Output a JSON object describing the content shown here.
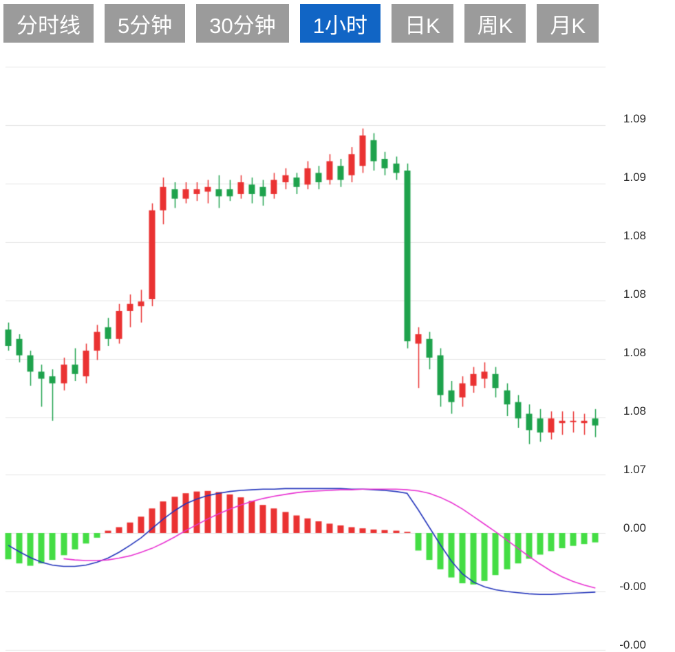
{
  "tabs": {
    "items": [
      {
        "label": "分时线",
        "active": false
      },
      {
        "label": "5分钟",
        "active": false
      },
      {
        "label": "30分钟",
        "active": false
      },
      {
        "label": "1小时",
        "active": true
      },
      {
        "label": "日K",
        "active": false
      },
      {
        "label": "周K",
        "active": false
      },
      {
        "label": "月K",
        "active": false
      }
    ]
  },
  "chart_data": {
    "type": "candlestick",
    "title": "",
    "panels": [
      "price",
      "macd"
    ],
    "legend": "none",
    "grid": "horizontal",
    "price_axis_labels": [
      "1.09",
      "1.09",
      "1.08",
      "1.08",
      "1.08",
      "1.08",
      "1.07"
    ],
    "macd_axis_labels": [
      "0.00",
      "-0.00",
      "-0.00"
    ],
    "ylim": [
      1.0755,
      1.093
    ],
    "macd_ylim": [
      -0.002,
      0.001
    ],
    "candles_ohlc": [
      [
        1.0817,
        1.082,
        1.0808,
        1.081
      ],
      [
        1.0813,
        1.0815,
        1.0803,
        1.0806
      ],
      [
        1.0806,
        1.0808,
        1.0793,
        1.0799
      ],
      [
        1.0799,
        1.0802,
        1.0784,
        1.0796
      ],
      [
        1.0797,
        1.08,
        1.0778,
        1.0794
      ],
      [
        1.0794,
        1.0805,
        1.0791,
        1.0802
      ],
      [
        1.0802,
        1.0809,
        1.0795,
        1.0798
      ],
      [
        1.0797,
        1.0811,
        1.0794,
        1.0808
      ],
      [
        1.0808,
        1.0819,
        1.0804,
        1.0816
      ],
      [
        1.0818,
        1.0822,
        1.081,
        1.0813
      ],
      [
        1.0813,
        1.0828,
        1.0811,
        1.0825
      ],
      [
        1.0825,
        1.0832,
        1.0818,
        1.0828
      ],
      [
        1.0827,
        1.0834,
        1.082,
        1.0829
      ],
      [
        1.083,
        1.0871,
        1.0827,
        1.0868
      ],
      [
        1.0868,
        1.0882,
        1.0862,
        1.0878
      ],
      [
        1.0877,
        1.088,
        1.0869,
        1.0873
      ],
      [
        1.0873,
        1.088,
        1.0871,
        1.0877
      ],
      [
        1.0875,
        1.088,
        1.0872,
        1.0877
      ],
      [
        1.0876,
        1.0881,
        1.0871,
        1.0878
      ],
      [
        1.0877,
        1.0883,
        1.0869,
        1.0874
      ],
      [
        1.0877,
        1.0881,
        1.0872,
        1.0874
      ],
      [
        1.0875,
        1.0883,
        1.0873,
        1.088
      ],
      [
        1.0879,
        1.0882,
        1.0871,
        1.0875
      ],
      [
        1.0878,
        1.0881,
        1.087,
        1.0874
      ],
      [
        1.0875,
        1.0884,
        1.0873,
        1.0881
      ],
      [
        1.088,
        1.0886,
        1.0877,
        1.0883
      ],
      [
        1.0882,
        1.0884,
        1.0875,
        1.0878
      ],
      [
        1.0879,
        1.0889,
        1.0877,
        1.0886
      ],
      [
        1.0884,
        1.0887,
        1.0877,
        1.088
      ],
      [
        1.0881,
        1.0892,
        1.0879,
        1.0889
      ],
      [
        1.0887,
        1.089,
        1.0878,
        1.0881
      ],
      [
        1.0883,
        1.0895,
        1.088,
        1.0892
      ],
      [
        1.0887,
        1.0903,
        1.0884,
        1.09
      ],
      [
        1.0898,
        1.0901,
        1.0885,
        1.0889
      ],
      [
        1.089,
        1.0893,
        1.0883,
        1.0886
      ],
      [
        1.0888,
        1.0891,
        1.0881,
        1.0884
      ],
      [
        1.0885,
        1.0888,
        1.0809,
        1.0812
      ],
      [
        1.0811,
        1.0818,
        1.0792,
        1.0815
      ],
      [
        1.0813,
        1.0816,
        1.08,
        1.0805
      ],
      [
        1.0806,
        1.0809,
        1.0784,
        1.0789
      ],
      [
        1.0791,
        1.0795,
        1.0781,
        1.0786
      ],
      [
        1.0788,
        1.0797,
        1.0784,
        1.0794
      ],
      [
        1.0793,
        1.0801,
        1.079,
        1.0798
      ],
      [
        1.0796,
        1.0803,
        1.0792,
        1.0799
      ],
      [
        1.0798,
        1.0801,
        1.0788,
        1.0792
      ],
      [
        1.0791,
        1.0794,
        1.078,
        1.0785
      ],
      [
        1.0786,
        1.0789,
        1.0775,
        1.0779
      ],
      [
        1.0781,
        1.0785,
        1.0768,
        1.0774
      ],
      [
        1.0779,
        1.0783,
        1.0769,
        1.0773
      ],
      [
        1.0773,
        1.0782,
        1.077,
        1.0779
      ],
      [
        1.0777,
        1.0782,
        1.0772,
        1.0778
      ],
      [
        1.0778,
        1.0782,
        1.0773,
        1.0778
      ],
      [
        1.0777,
        1.0781,
        1.0772,
        1.0778
      ],
      [
        1.0779,
        1.0783,
        1.0771,
        1.0776
      ]
    ],
    "macd": {
      "histogram": [
        -0.00045,
        -0.00052,
        -0.00056,
        -0.00052,
        -0.00046,
        -0.00038,
        -0.00028,
        -0.00018,
        -8e-05,
        4e-05,
        0.0001,
        0.00018,
        0.00028,
        0.00042,
        0.00054,
        0.00062,
        0.00068,
        0.00071,
        0.00072,
        0.0007,
        0.00066,
        0.00061,
        0.00055,
        0.00048,
        0.00042,
        0.00036,
        0.0003,
        0.00025,
        0.0002,
        0.00016,
        0.00013,
        0.0001,
        8e-05,
        6e-05,
        5e-05,
        4e-05,
        2e-05,
        -0.0003,
        -0.00046,
        -0.00062,
        -0.00076,
        -0.00086,
        -0.00088,
        -0.00082,
        -0.00072,
        -0.00062,
        -0.00052,
        -0.00044,
        -0.00037,
        -0.00031,
        -0.00026,
        -0.00022,
        -0.00019,
        -0.00016
      ],
      "dif": [
        -0.00021,
        -0.00032,
        -0.00042,
        -0.0005,
        -0.00055,
        -0.00057,
        -0.00057,
        -0.00055,
        -0.0005,
        -0.00043,
        -0.00033,
        -0.00021,
        -8e-05,
        8e-05,
        0.00024,
        0.00038,
        0.0005,
        0.00058,
        0.00064,
        0.00068,
        0.00071,
        0.00073,
        0.00074,
        0.00075,
        0.00075,
        0.00076,
        0.00076,
        0.00076,
        0.00076,
        0.00076,
        0.00076,
        0.00075,
        0.00075,
        0.00074,
        0.00073,
        0.00071,
        0.00068,
        0.0004,
        0.0001,
        -0.0002,
        -0.00048,
        -0.0007,
        -0.00084,
        -0.00092,
        -0.00097,
        -0.001,
        -0.00102,
        -0.00104,
        -0.00105,
        -0.00105,
        -0.00104,
        -0.00103,
        -0.00102,
        -0.00101
      ],
      "dea": [
        null,
        null,
        null,
        null,
        null,
        -0.00044,
        -0.00046,
        -0.00047,
        -0.00047,
        -0.00046,
        -0.00043,
        -0.00039,
        -0.00033,
        -0.00026,
        -0.00017,
        -7e-05,
        4e-05,
        0.00014,
        0.00024,
        0.00033,
        0.00041,
        0.00048,
        0.00054,
        0.00059,
        0.00063,
        0.00066,
        0.00069,
        0.00071,
        0.00072,
        0.00073,
        0.00074,
        0.00074,
        0.00075,
        0.00075,
        0.00075,
        0.00075,
        0.00074,
        0.00072,
        0.00068,
        0.00061,
        0.00052,
        0.00041,
        0.00028,
        0.00015,
        2e-05,
        -0.00012,
        -0.00026,
        -0.0004,
        -0.00053,
        -0.00065,
        -0.00075,
        -0.00083,
        -0.00089,
        -0.00094
      ]
    },
    "colors": {
      "up": "#ea3232",
      "down": "#1ea24c",
      "macd_green": "#44dd44",
      "dif_line": "#2233bb",
      "dea_line": "#e832d2",
      "grid": "#e3e3e3",
      "axis_text": "#2b2b2b",
      "tab_bg": "#9b9b9b",
      "tab_active_bg": "#1165c5",
      "tab_text": "#ffffff"
    }
  }
}
